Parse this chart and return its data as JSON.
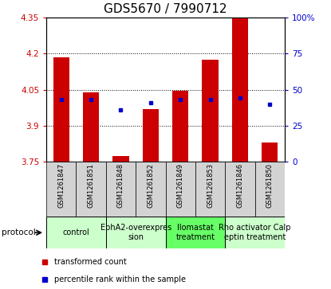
{
  "title": "GDS5670 / 7990712",
  "samples": [
    "GSM1261847",
    "GSM1261851",
    "GSM1261848",
    "GSM1261852",
    "GSM1261849",
    "GSM1261853",
    "GSM1261846",
    "GSM1261850"
  ],
  "transformed_counts": [
    4.185,
    4.04,
    3.775,
    3.97,
    4.045,
    4.175,
    4.35,
    3.83
  ],
  "percentile_ranks": [
    43,
    43,
    36,
    41,
    43,
    43,
    44,
    40
  ],
  "ylim_left": [
    3.75,
    4.35
  ],
  "ylim_right": [
    0,
    100
  ],
  "yticks_left": [
    3.75,
    3.9,
    4.05,
    4.2,
    4.35
  ],
  "yticks_right": [
    0,
    25,
    50,
    75,
    100
  ],
  "ytick_labels_left": [
    "3.75",
    "3.9",
    "4.05",
    "4.2",
    "4.35"
  ],
  "ytick_labels_right": [
    "0",
    "25",
    "50",
    "75",
    "100%"
  ],
  "bar_color": "#cc0000",
  "dot_color": "#0000cc",
  "bar_width": 0.55,
  "base_value": 3.75,
  "groups": [
    {
      "label": "control",
      "samples": [
        0,
        1
      ],
      "color": "#ccffcc"
    },
    {
      "label": "EphA2-overexpres\nsion",
      "samples": [
        2,
        3
      ],
      "color": "#ccffcc"
    },
    {
      "label": "Ilomastat\ntreatment",
      "samples": [
        4,
        5
      ],
      "color": "#66ff66"
    },
    {
      "label": "Rho activator Calp\neptin treatment",
      "samples": [
        6,
        7
      ],
      "color": "#ccffcc"
    }
  ],
  "legend_items": [
    {
      "color": "#cc0000",
      "label": "transformed count"
    },
    {
      "color": "#0000cc",
      "label": "percentile rank within the sample"
    }
  ],
  "title_fontsize": 11,
  "tick_fontsize": 7.5,
  "sample_fontsize": 6,
  "group_fontsize": 7,
  "legend_fontsize": 7
}
